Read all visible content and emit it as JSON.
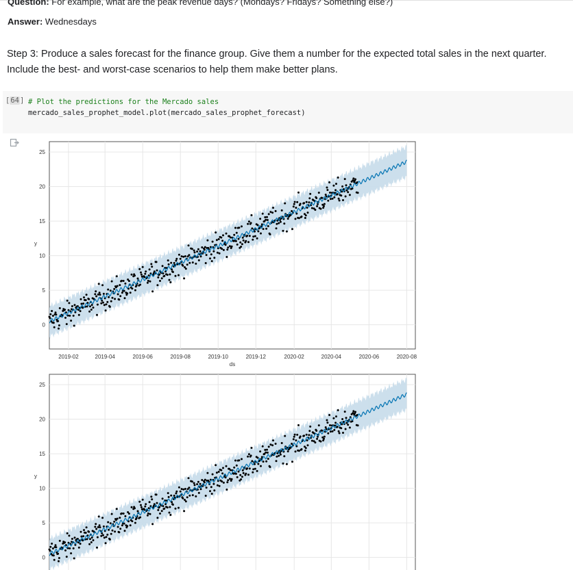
{
  "qa": {
    "question_label": "Question:",
    "question_text": "For example, what are the peak revenue days? (Mondays? Fridays? Something else?)",
    "answer_label": "Answer:",
    "answer_text": "Wednesdays"
  },
  "step3": {
    "text": "Step 3: Produce a sales forecast for the finance group. Give them a number for the expected total sales in the next quarter. Include the best- and worst-case scenarios to help them make better plans."
  },
  "cell": {
    "execution_count": "64",
    "code_comment": "# Plot the predictions for the Mercado sales",
    "code_line": "mercado_sales_prophet_model.plot(mercado_sales_prophet_forecast)"
  },
  "output_icon": "output-arrow-icon",
  "colors": {
    "forecast_line": "#0072b2",
    "interval_band": "#c7dbea",
    "observed_points": "#000000",
    "grid": "#e6e6e6",
    "code_comment": "#1a7f1a"
  },
  "chart_data": [
    {
      "type": "scatter",
      "title": "",
      "xlabel": "ds",
      "ylabel": "y",
      "x_tick_labels": [
        "2019-02",
        "2019-04",
        "2019-06",
        "2019-08",
        "2019-10",
        "2019-12",
        "2020-02",
        "2020-04",
        "2020-06",
        "2020-08"
      ],
      "y_ticks": [
        0,
        5,
        10,
        15,
        20,
        25
      ],
      "xlim": [
        "2019-01-01",
        "2020-08-15"
      ],
      "ylim": [
        -3.5,
        26.5
      ],
      "grid": true,
      "series": [
        {
          "kind": "forecast_line",
          "start": "2019-01-01",
          "end": "2020-08-01",
          "y_start": 0.5,
          "y_end": 23.6
        },
        {
          "kind": "uncertainty_interval",
          "half_width": 2.2
        },
        {
          "kind": "observed_points",
          "start": "2019-01-01",
          "end": "2020-05-14"
        }
      ]
    },
    {
      "type": "scatter",
      "title": "",
      "xlabel": "ds",
      "ylabel": "y",
      "y_ticks": [
        0,
        5,
        10,
        15,
        20,
        25
      ],
      "xlim": [
        "2019-01-01",
        "2020-08-15"
      ],
      "ylim": [
        -3.5,
        26.5
      ],
      "grid": true,
      "series": [
        {
          "kind": "forecast_line",
          "start": "2019-01-01",
          "end": "2020-08-01",
          "y_start": 0.5,
          "y_end": 23.6
        },
        {
          "kind": "uncertainty_interval",
          "half_width": 2.2
        },
        {
          "kind": "observed_points",
          "start": "2019-01-01",
          "end": "2020-05-14"
        }
      ]
    }
  ]
}
